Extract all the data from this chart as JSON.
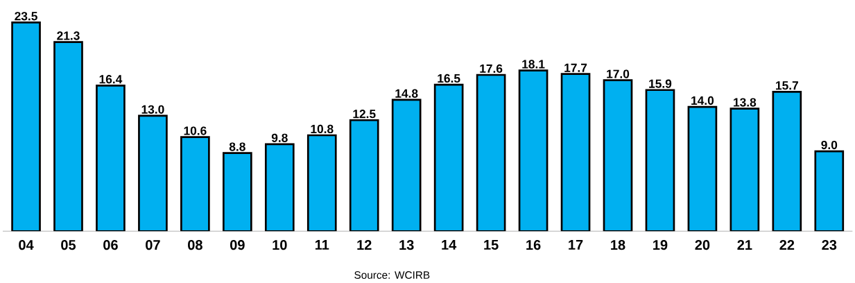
{
  "chart_data": {
    "type": "bar",
    "categories": [
      "04",
      "05",
      "06",
      "07",
      "08",
      "09",
      "10",
      "11",
      "12",
      "13",
      "14",
      "15",
      "16",
      "17",
      "18",
      "19",
      "20",
      "21",
      "22",
      "23"
    ],
    "values": [
      23.5,
      21.3,
      16.4,
      13.0,
      10.6,
      8.8,
      9.8,
      10.8,
      12.5,
      14.8,
      16.5,
      17.6,
      18.1,
      17.7,
      17.0,
      15.9,
      14.0,
      13.8,
      15.7,
      9.0
    ],
    "value_labels": [
      "23.5",
      "21.3",
      "16.4",
      "13.0",
      "10.6",
      "8.8",
      "9.8",
      "10.8",
      "12.5",
      "14.8",
      "16.5",
      "17.6",
      "18.1",
      "17.7",
      "17.0",
      "15.9",
      "14.0",
      "13.8",
      "15.7",
      "9.0"
    ],
    "color": "#00b0f0",
    "annotations": [
      "Source: WCIRB"
    ]
  }
}
